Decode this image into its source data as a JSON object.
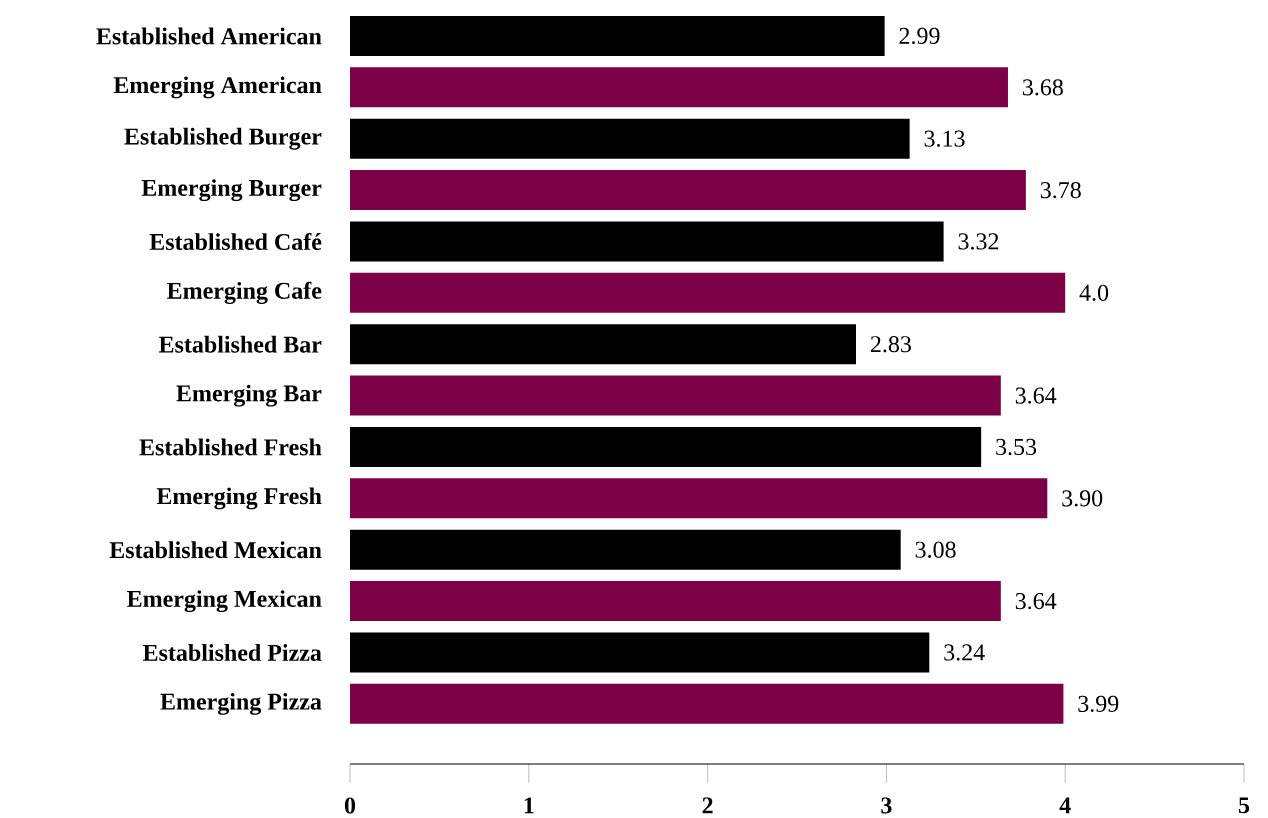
{
  "chart_data": {
    "type": "bar",
    "orientation": "horizontal",
    "categories": [
      "Established American",
      "Emerging American",
      "Established Burger",
      "Emerging Burger",
      "Established Café",
      "Emerging Cafe",
      "Established Bar",
      "Emerging Bar",
      "Established Fresh",
      "Emerging Fresh",
      "Established Mexican",
      "Emerging Mexican",
      "Established Pizza",
      "Emerging Pizza"
    ],
    "values": [
      2.99,
      3.68,
      3.13,
      3.78,
      3.32,
      4.0,
      2.83,
      3.64,
      3.53,
      3.9,
      3.08,
      3.64,
      3.24,
      3.99
    ],
    "value_labels": [
      "2.99",
      "3.68",
      "3.13",
      "3.78",
      "3.32",
      "4.0",
      "2.83",
      "3.64",
      "3.53",
      "3.90",
      "3.08",
      "3.64",
      "3.24",
      "3.99"
    ],
    "colors": [
      "#000000",
      "#7b0046",
      "#000000",
      "#7b0046",
      "#000000",
      "#7b0046",
      "#000000",
      "#7b0046",
      "#000000",
      "#7b0046",
      "#000000",
      "#7b0046",
      "#000000",
      "#7b0046"
    ],
    "xlim": [
      0,
      5
    ],
    "xticks": [
      0,
      1,
      2,
      3,
      4,
      5
    ]
  }
}
